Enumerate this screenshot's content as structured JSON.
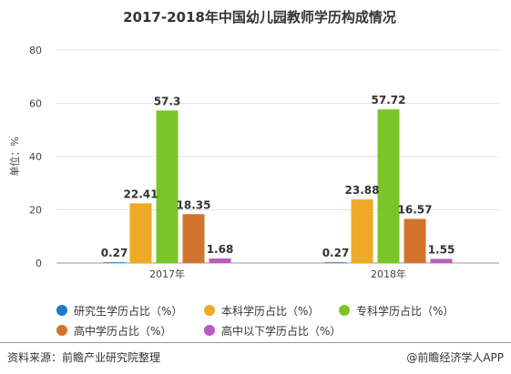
{
  "title": "2017-2018年中国幼儿园教师学历构成情况",
  "footer": {
    "source": "资料来源：前瞻产业研究院整理",
    "brand": "@前瞻经济学人APP"
  },
  "chart_data": {
    "type": "bar",
    "title": "2017-2018年中国幼儿园教师学历构成情况",
    "ylabel": "单位：%",
    "xlabel": "",
    "ylim": [
      0,
      80
    ],
    "yticks": [
      0,
      20,
      40,
      60,
      80
    ],
    "grid": true,
    "legend_position": "bottom",
    "categories": [
      "2017年",
      "2018年"
    ],
    "series": [
      {
        "name": "研究生学历占比（%）",
        "color": "#1f78c8",
        "values": [
          0.27,
          0.27
        ]
      },
      {
        "name": "本科学历占比（%）",
        "color": "#f0a924",
        "values": [
          22.41,
          23.88
        ]
      },
      {
        "name": "专科学历占比（%）",
        "color": "#7bc52a",
        "values": [
          57.3,
          57.72
        ]
      },
      {
        "name": "高中学历占比（%）",
        "color": "#d2742c",
        "values": [
          18.35,
          16.57
        ]
      },
      {
        "name": "高中以下学历占比（%）",
        "color": "#b95bc0",
        "values": [
          1.68,
          1.55
        ]
      }
    ]
  }
}
